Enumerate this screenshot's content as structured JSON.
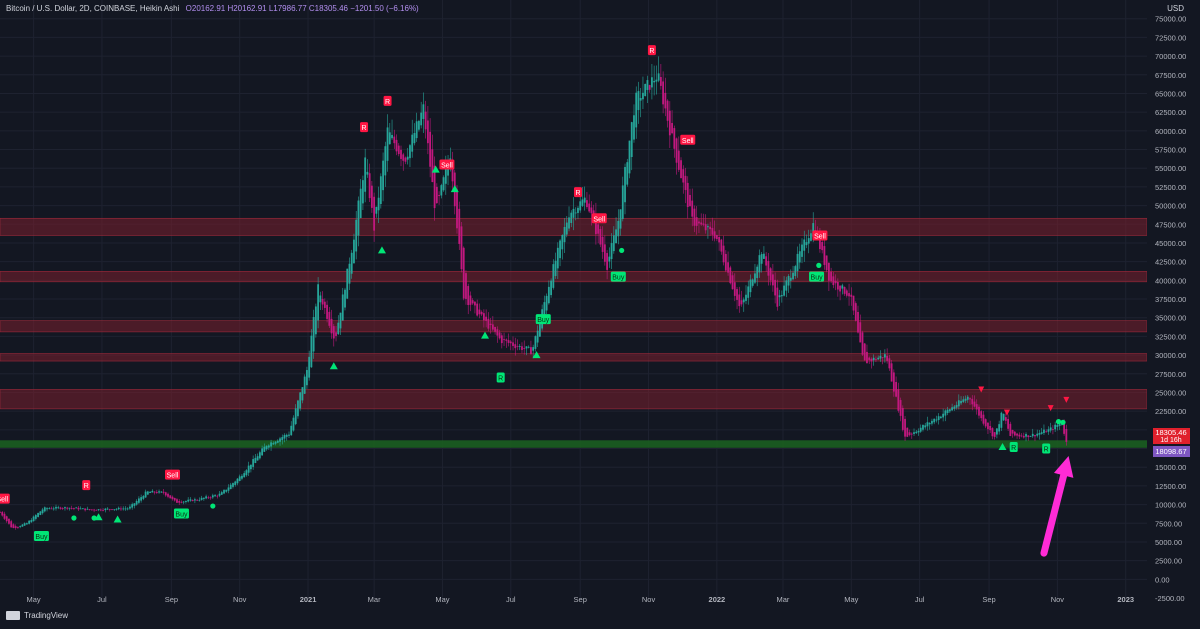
{
  "legend": {
    "symbol": "Bitcoin / U.S. Dollar, 2D, COINBASE, Heikin Ashi",
    "ohlc": "O20162.91 H20162.91 L17986.77 C18305.46 −1201.50 (−6.16%)"
  },
  "axis_currency": "USD",
  "branding": "TradingView",
  "price_tags": {
    "last_price": "18305.46",
    "countdown": "1d 16h",
    "support_level": "18098.67"
  },
  "colors": {
    "background": "#131722",
    "bull": "#26a69a",
    "bear": "#c2187f",
    "zone_red": "#7a1f2e",
    "zone_green": "#1b5e20",
    "signal_red": "#ff1744",
    "signal_green": "#00e676",
    "arrow": "#ff2bd6"
  },
  "chart_data": {
    "type": "candlestick",
    "title": "",
    "xlabel": "",
    "ylabel": "",
    "y_ticks": [
      0,
      2500,
      5000,
      7500,
      10000,
      12500,
      15000,
      17500,
      20000,
      22500,
      25000,
      27500,
      30000,
      32500,
      35000,
      37500,
      40000,
      42500,
      45000,
      47500,
      50000,
      52500,
      55000,
      57500,
      60000,
      62500,
      65000,
      67500,
      70000,
      72500,
      75000
    ],
    "y_tick_labels": [
      "0.00",
      "2500.00",
      "5000.00",
      "7500.00",
      "10000.00",
      "12500.00",
      "15000.00",
      "17500.00",
      "20000.00",
      "22500.00",
      "25000.00",
      "27500.00",
      "30000.00",
      "32500.00",
      "35000.00",
      "37500.00",
      "40000.00",
      "42500.00",
      "45000.00",
      "47500.00",
      "50000.00",
      "52500.00",
      "55000.00",
      "57500.00",
      "60000.00",
      "62500.00",
      "65000.00",
      "67500.00",
      "70000.00",
      "72500.00",
      "75000.00"
    ],
    "y_bottom_label": "-2500.00",
    "ylim": [
      -2500,
      77500
    ],
    "x_range": [
      "2020-04-01",
      "2023-01-20"
    ],
    "x_ticks": [
      {
        "date": "2020-05-01",
        "label": "May"
      },
      {
        "date": "2020-07-01",
        "label": "Jul"
      },
      {
        "date": "2020-09-01",
        "label": "Sep"
      },
      {
        "date": "2020-11-01",
        "label": "Nov"
      },
      {
        "date": "2021-01-01",
        "label": "2021"
      },
      {
        "date": "2021-03-01",
        "label": "Mar"
      },
      {
        "date": "2021-05-01",
        "label": "May"
      },
      {
        "date": "2021-07-01",
        "label": "Jul"
      },
      {
        "date": "2021-09-01",
        "label": "Sep"
      },
      {
        "date": "2021-11-01",
        "label": "Nov"
      },
      {
        "date": "2022-01-01",
        "label": "2022"
      },
      {
        "date": "2022-03-01",
        "label": "Mar"
      },
      {
        "date": "2022-05-01",
        "label": "May"
      },
      {
        "date": "2022-07-01",
        "label": "Jul"
      },
      {
        "date": "2022-09-01",
        "label": "Sep"
      },
      {
        "date": "2022-11-01",
        "label": "Nov"
      },
      {
        "date": "2023-01-01",
        "label": "2023"
      }
    ],
    "price_path": [
      [
        "2020-04-01",
        9000
      ],
      [
        "2020-04-12",
        6800
      ],
      [
        "2020-04-25",
        7500
      ],
      [
        "2020-05-10",
        9500
      ],
      [
        "2020-06-01",
        9600
      ],
      [
        "2020-06-20",
        9300
      ],
      [
        "2020-07-25",
        9500
      ],
      [
        "2020-08-10",
        11700
      ],
      [
        "2020-08-25",
        11600
      ],
      [
        "2020-09-05",
        10300
      ],
      [
        "2020-09-25",
        10700
      ],
      [
        "2020-10-15",
        11400
      ],
      [
        "2020-11-01",
        13700
      ],
      [
        "2020-11-25",
        18000
      ],
      [
        "2020-12-15",
        19500
      ],
      [
        "2020-12-31",
        28000
      ],
      [
        "2021-01-10",
        39000
      ],
      [
        "2021-01-25",
        32000
      ],
      [
        "2021-02-10",
        45000
      ],
      [
        "2021-02-21",
        56000
      ],
      [
        "2021-03-01",
        47000
      ],
      [
        "2021-03-13",
        60000
      ],
      [
        "2021-03-28",
        56000
      ],
      [
        "2021-04-14",
        63000
      ],
      [
        "2021-04-25",
        49000
      ],
      [
        "2021-05-08",
        57000
      ],
      [
        "2021-05-20",
        38000
      ],
      [
        "2021-06-05",
        35000
      ],
      [
        "2021-06-22",
        32000
      ],
      [
        "2021-07-20",
        30500
      ],
      [
        "2021-08-05",
        40000
      ],
      [
        "2021-08-22",
        49000
      ],
      [
        "2021-09-06",
        51000
      ],
      [
        "2021-09-25",
        42000
      ],
      [
        "2021-10-05",
        48000
      ],
      [
        "2021-10-20",
        64000
      ],
      [
        "2021-11-09",
        67500
      ],
      [
        "2021-11-25",
        57000
      ],
      [
        "2021-12-10",
        48000
      ],
      [
        "2021-12-31",
        46000
      ],
      [
        "2022-01-22",
        36000
      ],
      [
        "2022-02-10",
        44000
      ],
      [
        "2022-02-24",
        37000
      ],
      [
        "2022-03-28",
        47500
      ],
      [
        "2022-04-12",
        40000
      ],
      [
        "2022-04-30",
        38000
      ],
      [
        "2022-05-12",
        29000
      ],
      [
        "2022-06-01",
        30000
      ],
      [
        "2022-06-18",
        19000
      ],
      [
        "2022-07-10",
        21000
      ],
      [
        "2022-08-14",
        24500
      ],
      [
        "2022-08-25",
        21500
      ],
      [
        "2022-09-06",
        19000
      ],
      [
        "2022-09-13",
        22500
      ],
      [
        "2022-09-20",
        19200
      ],
      [
        "2022-10-10",
        19300
      ],
      [
        "2022-10-25",
        20000
      ],
      [
        "2022-11-05",
        21000
      ],
      [
        "2022-11-09",
        18300
      ]
    ],
    "resistance_zones": [
      [
        46000,
        48300
      ],
      [
        39800,
        41200
      ],
      [
        33100,
        34600
      ],
      [
        29200,
        30200
      ],
      [
        22800,
        25400
      ]
    ],
    "support_level": 18098.67,
    "signals": [
      {
        "date": "2020-04-03",
        "price": 10800,
        "type": "label-red",
        "text": "Sell"
      },
      {
        "date": "2020-05-08",
        "price": 5800,
        "type": "label-green",
        "text": "Buy"
      },
      {
        "date": "2020-06-06",
        "price": 8200,
        "type": "dot-green"
      },
      {
        "date": "2020-06-17",
        "price": 12600,
        "type": "label-red",
        "text": "R"
      },
      {
        "date": "2020-06-24",
        "price": 8200,
        "type": "dot-green"
      },
      {
        "date": "2020-06-28",
        "price": 8300,
        "type": "tri-green"
      },
      {
        "date": "2020-07-15",
        "price": 8000,
        "type": "tri-green"
      },
      {
        "date": "2020-09-02",
        "price": 14000,
        "type": "label-red",
        "text": "Sell"
      },
      {
        "date": "2020-09-10",
        "price": 8800,
        "type": "label-green",
        "text": "Buy"
      },
      {
        "date": "2020-10-08",
        "price": 9800,
        "type": "dot-green"
      },
      {
        "date": "2021-01-24",
        "price": 28500,
        "type": "tri-green"
      },
      {
        "date": "2021-02-20",
        "price": 60500,
        "type": "label-red",
        "text": "R"
      },
      {
        "date": "2021-03-08",
        "price": 44000,
        "type": "tri-green"
      },
      {
        "date": "2021-03-13",
        "price": 64000,
        "type": "label-red",
        "text": "R"
      },
      {
        "date": "2021-04-25",
        "price": 54800,
        "type": "tri-green"
      },
      {
        "date": "2021-05-05",
        "price": 55500,
        "type": "label-red",
        "text": "Sell"
      },
      {
        "date": "2021-05-12",
        "price": 52200,
        "type": "tri-green"
      },
      {
        "date": "2021-06-08",
        "price": 32600,
        "type": "tri-green"
      },
      {
        "date": "2021-06-22",
        "price": 27000,
        "type": "label-green",
        "text": "R"
      },
      {
        "date": "2021-07-24",
        "price": 30000,
        "type": "tri-green"
      },
      {
        "date": "2021-07-30",
        "price": 34800,
        "type": "label-green",
        "text": "Buy"
      },
      {
        "date": "2021-08-30",
        "price": 51800,
        "type": "label-red",
        "text": "R"
      },
      {
        "date": "2021-09-18",
        "price": 48300,
        "type": "label-red",
        "text": "Sell"
      },
      {
        "date": "2021-10-05",
        "price": 40500,
        "type": "label-green",
        "text": "Buy"
      },
      {
        "date": "2021-10-08",
        "price": 44000,
        "type": "dot-green"
      },
      {
        "date": "2021-11-04",
        "price": 70800,
        "type": "label-red",
        "text": "R"
      },
      {
        "date": "2021-12-06",
        "price": 58800,
        "type": "label-red",
        "text": "Sell"
      },
      {
        "date": "2022-04-03",
        "price": 46000,
        "type": "label-red",
        "text": "Sell"
      },
      {
        "date": "2022-03-31",
        "price": 40500,
        "type": "label-green",
        "text": "Buy"
      },
      {
        "date": "2022-04-02",
        "price": 42000,
        "type": "dot-green"
      },
      {
        "date": "2022-08-25",
        "price": 25400,
        "type": "tri-red"
      },
      {
        "date": "2022-09-13",
        "price": 17700,
        "type": "tri-green"
      },
      {
        "date": "2022-09-17",
        "price": 22300,
        "type": "tri-red"
      },
      {
        "date": "2022-09-23",
        "price": 17700,
        "type": "label-green",
        "text": "R"
      },
      {
        "date": "2022-10-22",
        "price": 17500,
        "type": "label-green",
        "text": "R"
      },
      {
        "date": "2022-10-26",
        "price": 22900,
        "type": "tri-red"
      },
      {
        "date": "2022-11-02",
        "price": 21100,
        "type": "dot-green"
      },
      {
        "date": "2022-11-06",
        "price": 21000,
        "type": "dot-green"
      },
      {
        "date": "2022-11-09",
        "price": 24000,
        "type": "tri-red"
      }
    ],
    "annotation_arrow": {
      "from": [
        "2022-10-20",
        3500
      ],
      "to": [
        "2022-11-11",
        16500
      ]
    }
  }
}
